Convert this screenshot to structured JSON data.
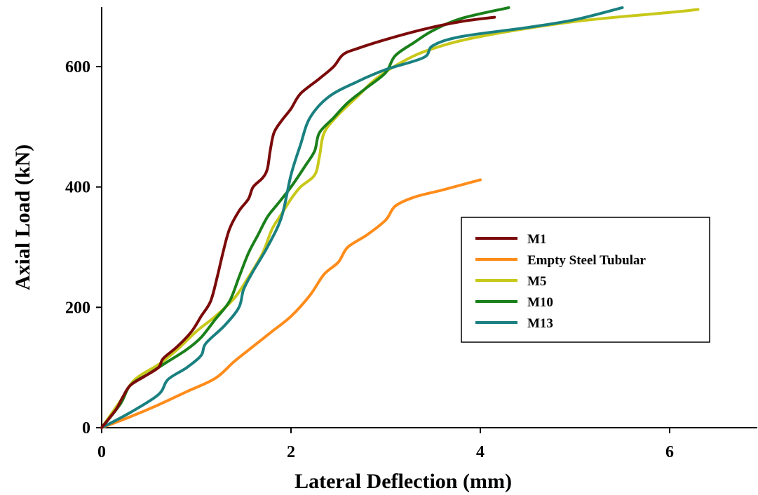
{
  "chart_data": {
    "type": "line",
    "title": "",
    "xlabel": "Lateral Deflection (mm)",
    "ylabel": "Axial Load (kN)",
    "xlim": [
      0,
      7
    ],
    "ylim": [
      0,
      720
    ],
    "xticks": [
      0,
      2,
      4,
      6
    ],
    "yticks": [
      0,
      200,
      400,
      600
    ],
    "grid": false,
    "legend_position": "right",
    "series": [
      {
        "name": "M1",
        "color": "#7B0A0A",
        "points": [
          [
            0,
            0
          ],
          [
            0.15,
            30
          ],
          [
            0.22,
            50
          ],
          [
            0.3,
            70
          ],
          [
            0.45,
            85
          ],
          [
            0.6,
            100
          ],
          [
            0.65,
            115
          ],
          [
            0.8,
            135
          ],
          [
            0.95,
            160
          ],
          [
            1.05,
            185
          ],
          [
            1.15,
            210
          ],
          [
            1.22,
            250
          ],
          [
            1.28,
            290
          ],
          [
            1.35,
            330
          ],
          [
            1.45,
            360
          ],
          [
            1.55,
            380
          ],
          [
            1.6,
            400
          ],
          [
            1.7,
            415
          ],
          [
            1.75,
            430
          ],
          [
            1.78,
            460
          ],
          [
            1.82,
            490
          ],
          [
            1.9,
            510
          ],
          [
            2.0,
            530
          ],
          [
            2.1,
            555
          ],
          [
            2.3,
            580
          ],
          [
            2.45,
            600
          ],
          [
            2.55,
            620
          ],
          [
            2.7,
            630
          ],
          [
            3.0,
            645
          ],
          [
            3.4,
            662
          ],
          [
            3.8,
            675
          ],
          [
            4.15,
            682
          ]
        ]
      },
      {
        "name": "Empty Steel Tubular",
        "color": "#FF8C1A",
        "points": [
          [
            0,
            0
          ],
          [
            0.3,
            18
          ],
          [
            0.6,
            38
          ],
          [
            0.9,
            60
          ],
          [
            1.2,
            82
          ],
          [
            1.4,
            110
          ],
          [
            1.6,
            135
          ],
          [
            1.8,
            160
          ],
          [
            2.0,
            185
          ],
          [
            2.2,
            220
          ],
          [
            2.35,
            255
          ],
          [
            2.5,
            275
          ],
          [
            2.6,
            300
          ],
          [
            2.8,
            320
          ],
          [
            3.0,
            345
          ],
          [
            3.1,
            368
          ],
          [
            3.3,
            383
          ],
          [
            3.6,
            395
          ],
          [
            4.0,
            412
          ]
        ]
      },
      {
        "name": "M5",
        "color": "#C8C81A",
        "points": [
          [
            0,
            0
          ],
          [
            0.2,
            45
          ],
          [
            0.35,
            80
          ],
          [
            0.6,
            105
          ],
          [
            0.8,
            130
          ],
          [
            1.0,
            160
          ],
          [
            1.2,
            185
          ],
          [
            1.4,
            215
          ],
          [
            1.55,
            250
          ],
          [
            1.7,
            290
          ],
          [
            1.8,
            330
          ],
          [
            1.9,
            355
          ],
          [
            2.0,
            380
          ],
          [
            2.1,
            400
          ],
          [
            2.25,
            420
          ],
          [
            2.3,
            450
          ],
          [
            2.35,
            490
          ],
          [
            2.5,
            520
          ],
          [
            2.7,
            550
          ],
          [
            2.9,
            580
          ],
          [
            3.2,
            610
          ],
          [
            3.5,
            630
          ],
          [
            4.0,
            650
          ],
          [
            5.0,
            675
          ],
          [
            6.0,
            690
          ],
          [
            6.3,
            695
          ]
        ]
      },
      {
        "name": "M10",
        "color": "#1A801A",
        "points": [
          [
            0,
            0
          ],
          [
            0.2,
            40
          ],
          [
            0.3,
            70
          ],
          [
            0.5,
            90
          ],
          [
            0.7,
            110
          ],
          [
            0.9,
            130
          ],
          [
            1.05,
            150
          ],
          [
            1.2,
            180
          ],
          [
            1.35,
            210
          ],
          [
            1.45,
            250
          ],
          [
            1.55,
            290
          ],
          [
            1.65,
            320
          ],
          [
            1.75,
            350
          ],
          [
            1.85,
            370
          ],
          [
            2.0,
            400
          ],
          [
            2.15,
            435
          ],
          [
            2.25,
            460
          ],
          [
            2.3,
            490
          ],
          [
            2.45,
            515
          ],
          [
            2.6,
            540
          ],
          [
            2.8,
            565
          ],
          [
            3.0,
            590
          ],
          [
            3.1,
            618
          ],
          [
            3.3,
            640
          ],
          [
            3.5,
            660
          ],
          [
            3.8,
            680
          ],
          [
            4.3,
            698
          ]
        ]
      },
      {
        "name": "M13",
        "color": "#1A8080",
        "points": [
          [
            0,
            0
          ],
          [
            0.3,
            25
          ],
          [
            0.6,
            55
          ],
          [
            0.7,
            80
          ],
          [
            0.9,
            100
          ],
          [
            1.05,
            120
          ],
          [
            1.1,
            140
          ],
          [
            1.3,
            170
          ],
          [
            1.45,
            200
          ],
          [
            1.5,
            230
          ],
          [
            1.6,
            260
          ],
          [
            1.75,
            300
          ],
          [
            1.9,
            350
          ],
          [
            2.0,
            420
          ],
          [
            2.1,
            470
          ],
          [
            2.2,
            515
          ],
          [
            2.4,
            550
          ],
          [
            2.7,
            575
          ],
          [
            3.0,
            595
          ],
          [
            3.4,
            615
          ],
          [
            3.5,
            635
          ],
          [
            3.8,
            650
          ],
          [
            4.5,
            665
          ],
          [
            5.0,
            678
          ],
          [
            5.5,
            698
          ]
        ]
      }
    ]
  }
}
